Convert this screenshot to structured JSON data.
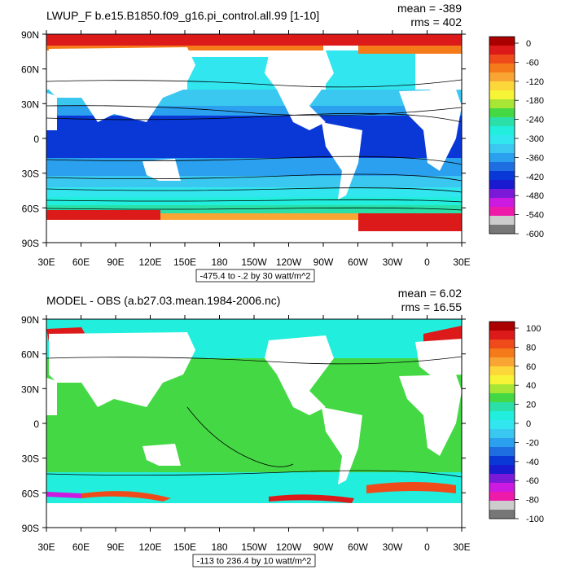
{
  "panels": [
    {
      "title": "LWUP_F b.e15.B1850.f09_g16.pi_control.all.99 [1-10]",
      "mean": "mean = -389",
      "rms": "rms = 402",
      "range_note": "-475.4 to -.2 by 30 watt/m^2",
      "colorbar": {
        "labels": [
          "0",
          "-60",
          "-120",
          "-180",
          "-240",
          "-300",
          "-360",
          "-420",
          "-480",
          "-540",
          "-600"
        ],
        "colors": [
          "#aa0000",
          "#dd1a1a",
          "#ee4a1a",
          "#f57a1a",
          "#f9a533",
          "#fcd73a",
          "#f7f437",
          "#a8e636",
          "#44d944",
          "#2ae0a8",
          "#22eedd",
          "#32e6f0",
          "#3ac8f0",
          "#2aa0ee",
          "#1e6ee2",
          "#0a38d6",
          "#1a1ad0",
          "#7a1ad8",
          "#cc1ae0",
          "#ee1aaa",
          "#cccccc",
          "#777777"
        ]
      },
      "field": "lwup"
    },
    {
      "title": "MODEL - OBS (a.b27.03.mean.1984-2006.nc)",
      "mean": "mean = 6.02",
      "rms": "rms = 16.55",
      "range_note": "-113 to 236.4 by 10 watt/m^2",
      "colorbar": {
        "labels": [
          "100",
          "80",
          "60",
          "40",
          "20",
          "0",
          "-20",
          "-40",
          "-60",
          "-80",
          "-100"
        ],
        "colors": [
          "#aa0000",
          "#dd1a1a",
          "#ee4a1a",
          "#f57a1a",
          "#f9a533",
          "#fcd73a",
          "#f7f437",
          "#a8e636",
          "#44d944",
          "#2ae0a8",
          "#22eedd",
          "#32e6f0",
          "#3ac8f0",
          "#2aa0ee",
          "#1e6ee2",
          "#0a38d6",
          "#1a1ad0",
          "#7a1ad8",
          "#cc1ae0",
          "#ee1aaa",
          "#cccccc",
          "#777777"
        ]
      },
      "field": "diff"
    }
  ],
  "axes": {
    "lat_labels": [
      "90N",
      "60N",
      "30N",
      "0",
      "30S",
      "60S",
      "90S"
    ],
    "lon_labels": [
      "30E",
      "60E",
      "90E",
      "120E",
      "150E",
      "180",
      "150W",
      "120W",
      "90W",
      "60W",
      "30W",
      "0",
      "30E"
    ]
  }
}
